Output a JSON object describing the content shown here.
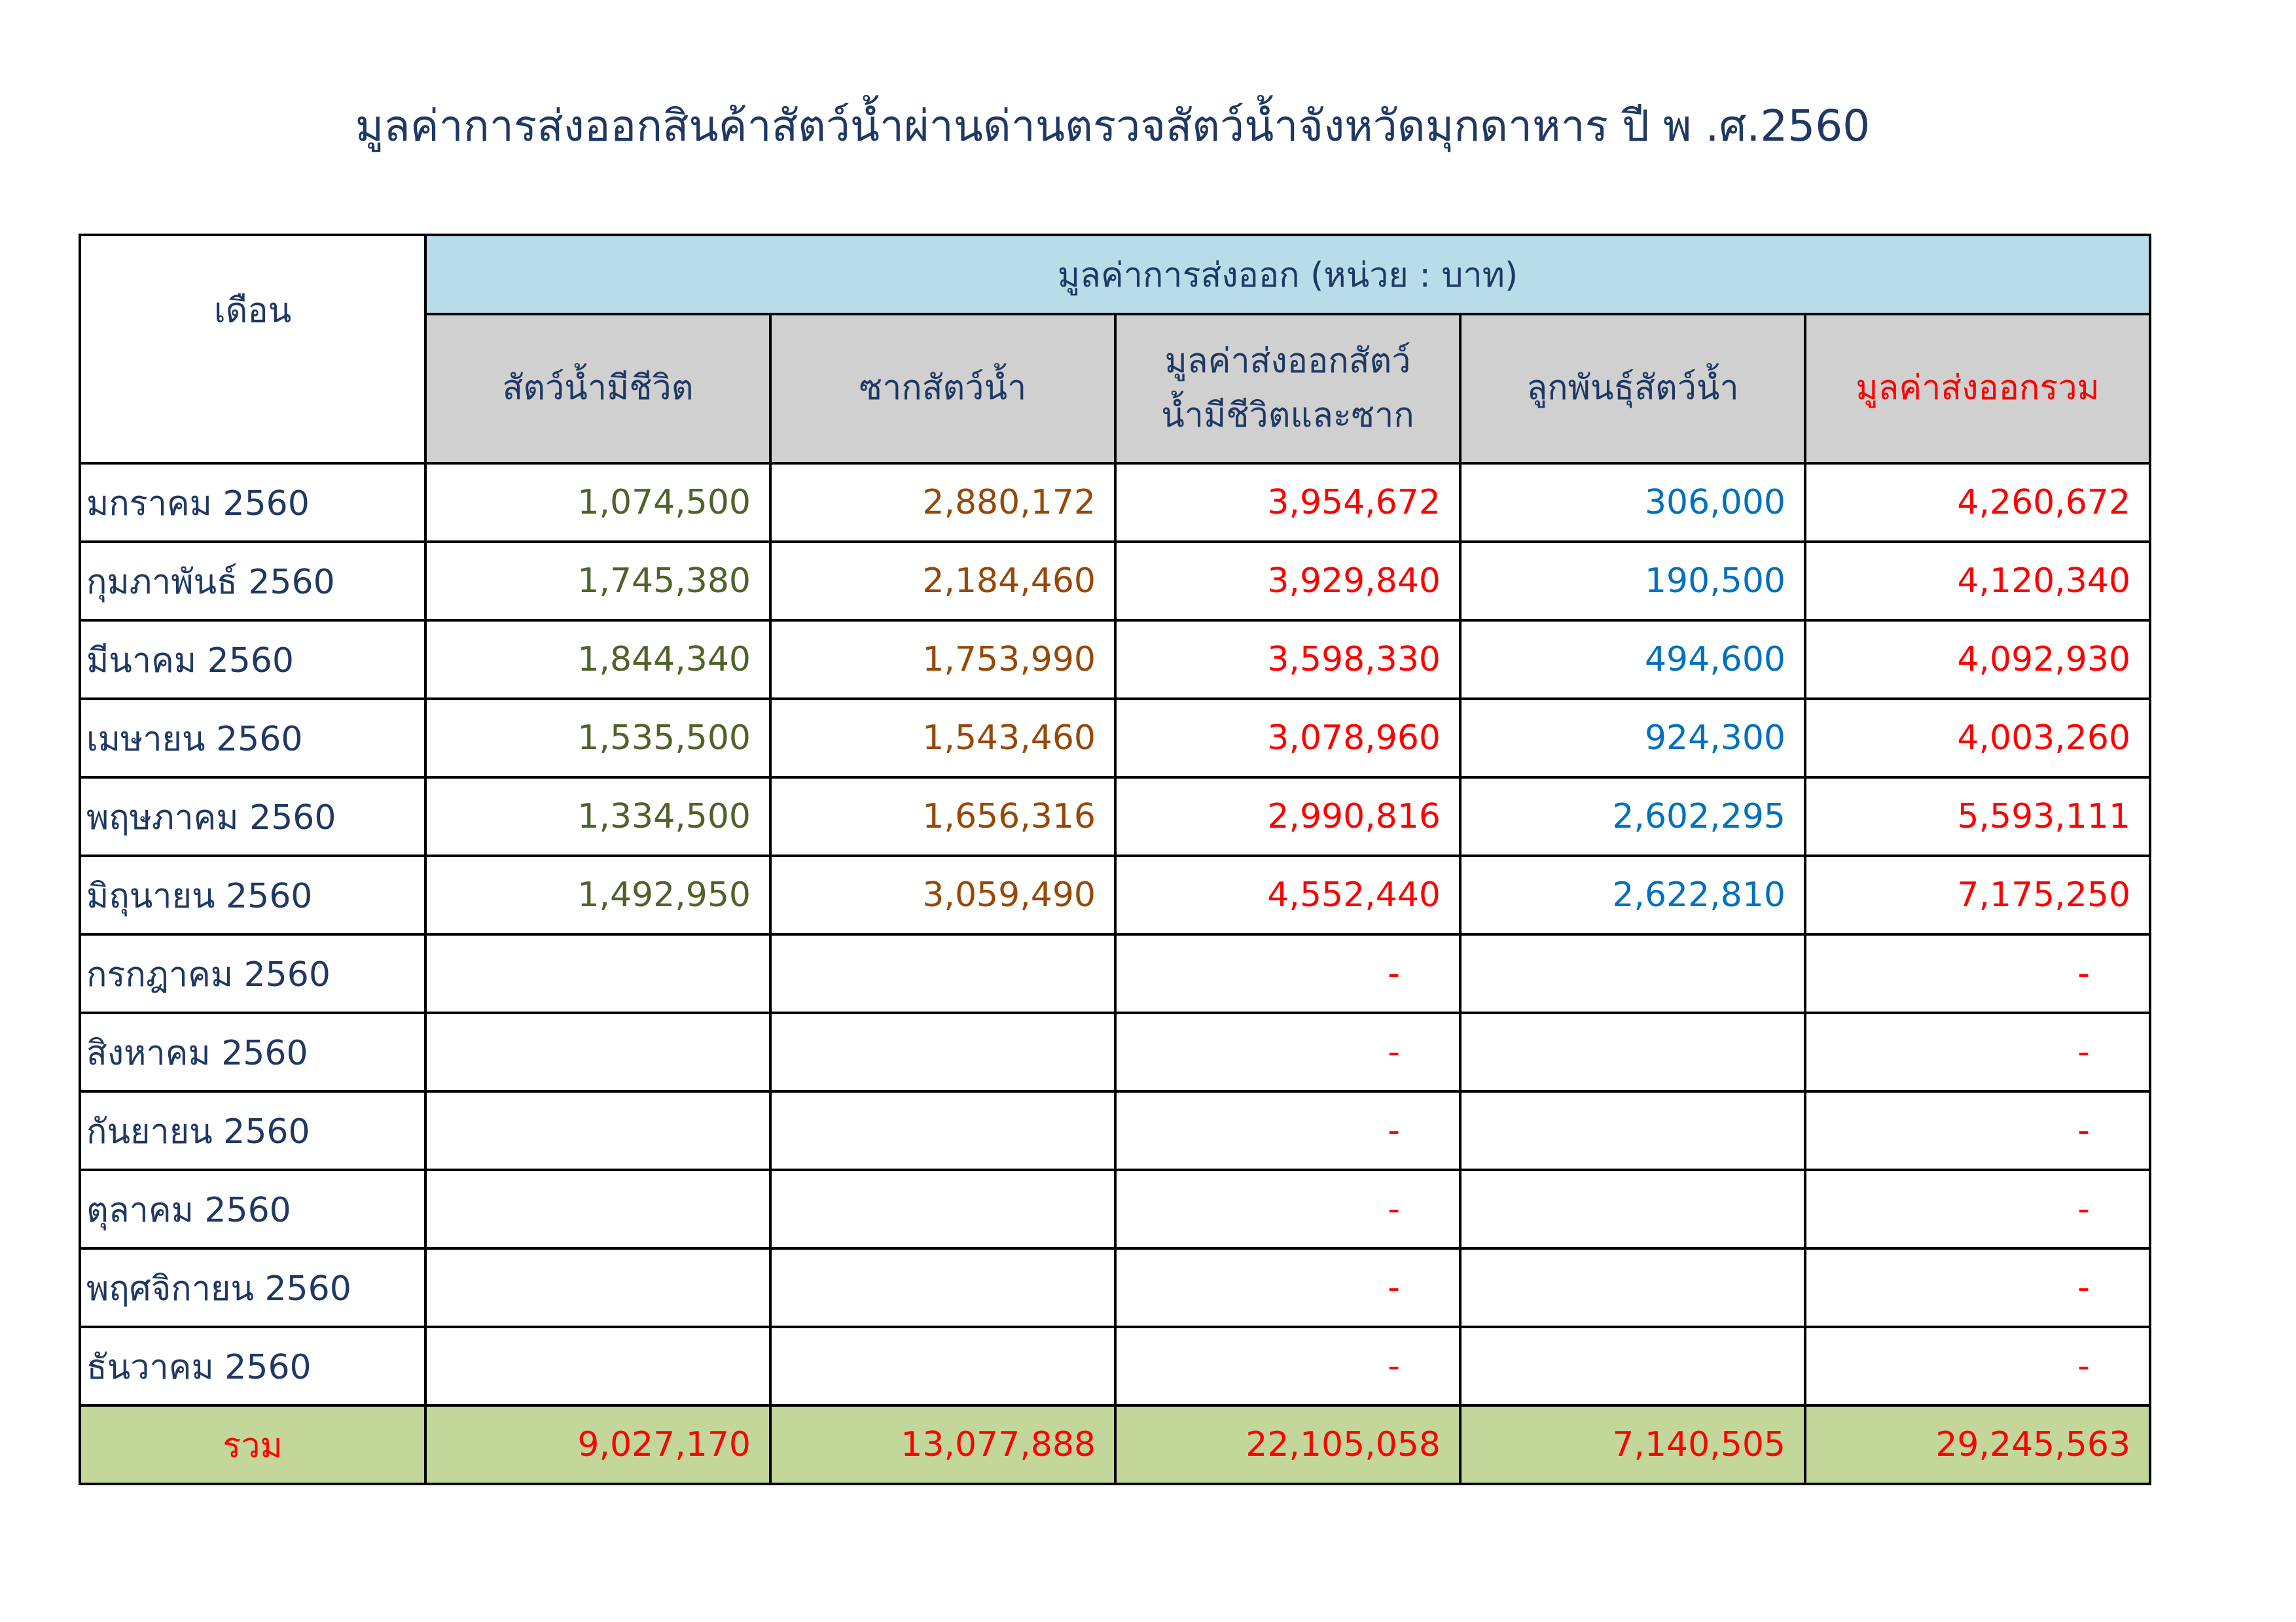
{
  "title": "มูลค่าการส่งออกสินค้าสัตว์น้ำผ่านด่านตรวจสัตว์น้ำจังหวัดมุกดาหาร ปี พ .ศ.2560",
  "headers": {
    "month": "เดือน",
    "group": "มูลค่าการส่งออก (หน่วย : บาท)",
    "live": "สัตว์น้ำมีชีวิต",
    "carcass": "ซากสัตว์น้ำ",
    "live_and_carcass": "มูลค่าส่งออกสัตว์น้ำมีชีวิตและซาก",
    "fry": "ลูกพันธุ์สัตว์น้ำ",
    "total": "มูลค่าส่งออกรวม"
  },
  "rows": [
    {
      "month": "มกราคม 2560",
      "live": "1,074,500",
      "carcass": "2,880,172",
      "combined": "3,954,672",
      "fry": "306,000",
      "total": "4,260,672"
    },
    {
      "month": "กุมภาพันธ์ 2560",
      "live": "1,745,380",
      "carcass": "2,184,460",
      "combined": "3,929,840",
      "fry": "190,500",
      "total": "4,120,340"
    },
    {
      "month": "มีนาคม 2560",
      "live": "1,844,340",
      "carcass": "1,753,990",
      "combined": "3,598,330",
      "fry": "494,600",
      "total": "4,092,930"
    },
    {
      "month": "เมษายน 2560",
      "live": "1,535,500",
      "carcass": "1,543,460",
      "combined": "3,078,960",
      "fry": "924,300",
      "total": "4,003,260"
    },
    {
      "month": "พฤษภาคม 2560",
      "live": "1,334,500",
      "carcass": "1,656,316",
      "combined": "2,990,816",
      "fry": "2,602,295",
      "total": "5,593,111"
    },
    {
      "month": "มิถุนายน 2560",
      "live": "1,492,950",
      "carcass": "3,059,490",
      "combined": "4,552,440",
      "fry": "2,622,810",
      "total": "7,175,250"
    },
    {
      "month": "กรกฎาคม 2560",
      "live": "",
      "carcass": "",
      "combined": "-",
      "fry": "",
      "total": "-"
    },
    {
      "month": "สิงหาคม 2560",
      "live": "",
      "carcass": "",
      "combined": "-",
      "fry": "",
      "total": "-"
    },
    {
      "month": "กันยายน 2560",
      "live": "",
      "carcass": "",
      "combined": "-",
      "fry": "",
      "total": "-"
    },
    {
      "month": "ตุลาคม 2560",
      "live": "",
      "carcass": "",
      "combined": "-",
      "fry": "",
      "total": "-"
    },
    {
      "month": "พฤศจิกายน 2560",
      "live": "",
      "carcass": "",
      "combined": "-",
      "fry": "",
      "total": "-"
    },
    {
      "month": "ธันวาคม 2560",
      "live": "",
      "carcass": "",
      "combined": "-",
      "fry": "",
      "total": "-"
    }
  ],
  "totals": {
    "label": "รวม",
    "live": "9,027,170",
    "carcass": "13,077,888",
    "combined": "22,105,058",
    "fry": "7,140,505",
    "total": "29,245,563"
  }
}
